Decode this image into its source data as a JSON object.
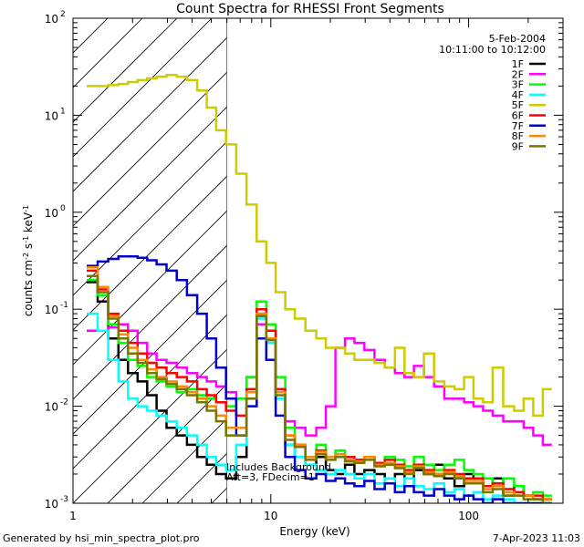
{
  "chart_data": {
    "type": "line",
    "title": "Count Spectra for RHESSI Front Segments",
    "xlabel": "Energy (keV)",
    "ylabel_parts": [
      "counts cm",
      "-2",
      " s",
      "-1",
      " keV",
      "-1"
    ],
    "xscale": "log",
    "yscale": "log",
    "xlim": [
      1,
      300
    ],
    "ylim": [
      0.001,
      100
    ],
    "x_ticks": [
      {
        "value": 1,
        "label": "1"
      },
      {
        "value": 10,
        "label": "10"
      },
      {
        "value": 100,
        "label": "100"
      }
    ],
    "y_ticks": [
      {
        "value": 0.001,
        "base": "10",
        "exp": "-3"
      },
      {
        "value": 0.01,
        "base": "10",
        "exp": "-2"
      },
      {
        "value": 0.1,
        "base": "10",
        "exp": "-1"
      },
      {
        "value": 1,
        "base": "10",
        "exp": "0"
      },
      {
        "value": 10,
        "base": "10",
        "exp": "1"
      },
      {
        "value": 100,
        "base": "10",
        "exp": "2"
      }
    ],
    "date": "5-Feb-2004",
    "time_range": "10:11:00 to 10:12:00",
    "shaded_region": {
      "x_min": 1,
      "x_max": 6,
      "pattern": "diagonal hatch"
    },
    "annotations": [
      "Includes Background",
      "Att=3, FDecim=1"
    ],
    "footer_left": "Generated by hsi_min_spectra_plot.pro",
    "footer_right": "7-Apr-2023 11:03",
    "series": [
      {
        "name": "1F",
        "color": "#000000",
        "x": [
          1.25,
          1.42,
          1.6,
          1.8,
          2.0,
          2.25,
          2.5,
          2.8,
          3.15,
          3.55,
          4.0,
          4.5,
          5.0,
          5.6,
          6.3,
          7.1,
          8.0,
          9.0,
          10.0,
          11.2,
          12.5,
          14.0,
          16.0,
          18.0,
          20.0,
          22.5,
          25.0,
          28.0,
          31.5,
          35.5,
          40.0,
          45.0,
          50.0,
          56.0,
          63.0,
          71.0,
          80.0,
          90.0,
          100.0,
          112.0,
          125.0,
          140.0,
          160.0,
          180.0,
          200.0,
          225.0,
          250.0
        ],
        "y": [
          0.19,
          0.12,
          0.05,
          0.03,
          0.022,
          0.018,
          0.013,
          0.009,
          0.006,
          0.005,
          0.004,
          0.003,
          0.0025,
          0.002,
          0.0018,
          0.003,
          0.012,
          0.09,
          0.05,
          0.012,
          0.004,
          0.003,
          0.0025,
          0.003,
          0.0022,
          0.002,
          0.0025,
          0.002,
          0.0022,
          0.002,
          0.0018,
          0.002,
          0.0015,
          0.0022,
          0.002,
          0.0025,
          0.0018,
          0.0015,
          0.002,
          0.0018,
          0.0015,
          0.0018,
          0.0012,
          0.0015,
          0.0012,
          0.0011,
          0.0011
        ]
      },
      {
        "name": "2F",
        "color": "#ff00ff",
        "x": [
          1.25,
          1.42,
          1.6,
          1.8,
          2.0,
          2.25,
          2.5,
          2.8,
          3.15,
          3.55,
          4.0,
          4.5,
          5.0,
          5.6,
          6.3,
          7.1,
          8.0,
          9.0,
          10.0,
          11.2,
          12.5,
          14.0,
          16.0,
          18.0,
          20.0,
          22.5,
          25.0,
          28.0,
          31.5,
          35.5,
          40.0,
          45.0,
          50.0,
          56.0,
          63.0,
          71.0,
          80.0,
          90.0,
          100.0,
          112.0,
          125.0,
          140.0,
          160.0,
          180.0,
          200.0,
          225.0,
          250.0
        ],
        "y": [
          0.06,
          0.06,
          0.065,
          0.07,
          0.06,
          0.045,
          0.035,
          0.03,
          0.028,
          0.025,
          0.022,
          0.02,
          0.018,
          0.016,
          0.014,
          0.012,
          0.02,
          0.07,
          0.05,
          0.015,
          0.007,
          0.006,
          0.005,
          0.006,
          0.01,
          0.04,
          0.05,
          0.045,
          0.038,
          0.03,
          0.025,
          0.022,
          0.02,
          0.026,
          0.02,
          0.016,
          0.012,
          0.012,
          0.011,
          0.01,
          0.009,
          0.008,
          0.007,
          0.007,
          0.006,
          0.005,
          0.004
        ]
      },
      {
        "name": "3F",
        "color": "#00ff00",
        "x": [
          1.25,
          1.42,
          1.6,
          1.8,
          2.0,
          2.25,
          2.5,
          2.8,
          3.15,
          3.55,
          4.0,
          4.5,
          5.0,
          5.6,
          6.3,
          7.1,
          8.0,
          9.0,
          10.0,
          11.2,
          12.5,
          14.0,
          16.0,
          18.0,
          20.0,
          22.5,
          25.0,
          28.0,
          31.5,
          35.5,
          40.0,
          45.0,
          50.0,
          56.0,
          63.0,
          71.0,
          80.0,
          90.0,
          100.0,
          112.0,
          125.0,
          140.0,
          160.0,
          180.0,
          200.0,
          225.0,
          250.0
        ],
        "y": [
          0.2,
          0.14,
          0.07,
          0.045,
          0.03,
          0.026,
          0.02,
          0.018,
          0.016,
          0.014,
          0.015,
          0.013,
          0.012,
          0.011,
          0.01,
          0.012,
          0.02,
          0.12,
          0.07,
          0.02,
          0.006,
          0.004,
          0.003,
          0.004,
          0.003,
          0.0035,
          0.003,
          0.0028,
          0.003,
          0.0025,
          0.003,
          0.0028,
          0.0024,
          0.003,
          0.0025,
          0.0022,
          0.0025,
          0.0028,
          0.0022,
          0.002,
          0.0018,
          0.0015,
          0.0018,
          0.0015,
          0.0012,
          0.0013,
          0.0012
        ]
      },
      {
        "name": "4F",
        "color": "#00ffff",
        "x": [
          1.25,
          1.42,
          1.6,
          1.8,
          2.0,
          2.25,
          2.5,
          2.8,
          3.15,
          3.55,
          4.0,
          4.5,
          5.0,
          5.6,
          6.3,
          7.1,
          8.0,
          9.0,
          10.0,
          11.2,
          12.5,
          14.0,
          16.0,
          18.0,
          20.0,
          22.5,
          25.0,
          28.0,
          31.5,
          35.5,
          40.0,
          45.0,
          50.0,
          56.0,
          63.0,
          71.0,
          80.0,
          90.0,
          100.0,
          112.0,
          125.0,
          140.0,
          160.0,
          180.0,
          200.0,
          225.0,
          250.0
        ],
        "y": [
          0.09,
          0.06,
          0.03,
          0.018,
          0.012,
          0.01,
          0.009,
          0.008,
          0.007,
          0.006,
          0.005,
          0.004,
          0.003,
          0.0025,
          0.0022,
          0.004,
          0.015,
          0.08,
          0.045,
          0.012,
          0.004,
          0.003,
          0.0025,
          0.0022,
          0.002,
          0.0022,
          0.002,
          0.0018,
          0.002,
          0.0016,
          0.0018,
          0.0015,
          0.0018,
          0.0015,
          0.0014,
          0.0016,
          0.0013,
          0.0014,
          0.0012,
          0.0013,
          0.0011,
          0.0012,
          0.0011,
          0.001,
          0.001,
          0.001,
          0.001
        ]
      },
      {
        "name": "5F",
        "color": "#cccc00",
        "x": [
          1.25,
          1.42,
          1.6,
          1.8,
          2.0,
          2.25,
          2.5,
          2.8,
          3.15,
          3.55,
          4.0,
          4.5,
          5.0,
          5.6,
          6.3,
          7.1,
          8.0,
          9.0,
          10.0,
          11.2,
          12.5,
          14.0,
          16.0,
          18.0,
          20.0,
          22.5,
          25.0,
          28.0,
          31.5,
          35.5,
          40.0,
          45.0,
          50.0,
          56.0,
          63.0,
          71.0,
          80.0,
          90.0,
          100.0,
          112.0,
          125.0,
          140.0,
          160.0,
          180.0,
          200.0,
          225.0,
          250.0
        ],
        "y": [
          20,
          20,
          20.5,
          21,
          22,
          23,
          24,
          25,
          26,
          25,
          23,
          18,
          12,
          7,
          5,
          2.5,
          1.2,
          0.5,
          0.3,
          0.15,
          0.1,
          0.08,
          0.06,
          0.05,
          0.04,
          0.04,
          0.035,
          0.03,
          0.03,
          0.028,
          0.025,
          0.04,
          0.022,
          0.02,
          0.035,
          0.018,
          0.016,
          0.015,
          0.02,
          0.012,
          0.011,
          0.025,
          0.01,
          0.009,
          0.012,
          0.008,
          0.015
        ]
      },
      {
        "name": "6F",
        "color": "#ff0000",
        "x": [
          1.25,
          1.42,
          1.6,
          1.8,
          2.0,
          2.25,
          2.5,
          2.8,
          3.15,
          3.55,
          4.0,
          4.5,
          5.0,
          5.6,
          6.3,
          7.1,
          8.0,
          9.0,
          10.0,
          11.2,
          12.5,
          14.0,
          16.0,
          18.0,
          20.0,
          22.5,
          25.0,
          28.0,
          31.5,
          35.5,
          40.0,
          45.0,
          50.0,
          56.0,
          63.0,
          71.0,
          80.0,
          90.0,
          100.0,
          112.0,
          125.0,
          140.0,
          160.0,
          180.0,
          200.0,
          225.0,
          250.0
        ],
        "y": [
          0.25,
          0.16,
          0.09,
          0.06,
          0.045,
          0.035,
          0.028,
          0.025,
          0.022,
          0.02,
          0.018,
          0.015,
          0.013,
          0.011,
          0.009,
          0.008,
          0.015,
          0.1,
          0.06,
          0.015,
          0.005,
          0.004,
          0.003,
          0.0035,
          0.003,
          0.0032,
          0.003,
          0.0028,
          0.003,
          0.0026,
          0.0028,
          0.0025,
          0.0022,
          0.0025,
          0.0022,
          0.002,
          0.0022,
          0.002,
          0.0018,
          0.0018,
          0.0015,
          0.0016,
          0.0014,
          0.0013,
          0.0012,
          0.0012,
          0.0011
        ]
      },
      {
        "name": "7F",
        "color": "#0000cc",
        "x": [
          1.25,
          1.42,
          1.6,
          1.8,
          2.0,
          2.25,
          2.5,
          2.8,
          3.15,
          3.55,
          4.0,
          4.5,
          5.0,
          5.6,
          6.3,
          7.1,
          8.0,
          9.0,
          10.0,
          11.2,
          12.5,
          14.0,
          16.0,
          18.0,
          20.0,
          22.5,
          25.0,
          28.0,
          31.5,
          35.5,
          40.0,
          45.0,
          50.0,
          56.0,
          63.0,
          71.0,
          80.0,
          90.0,
          100.0,
          112.0,
          125.0,
          140.0,
          160.0,
          180.0,
          200.0,
          225.0,
          250.0
        ],
        "y": [
          0.28,
          0.31,
          0.33,
          0.35,
          0.35,
          0.34,
          0.32,
          0.29,
          0.25,
          0.2,
          0.14,
          0.09,
          0.05,
          0.025,
          0.012,
          0.005,
          0.01,
          0.05,
          0.03,
          0.008,
          0.003,
          0.0022,
          0.0018,
          0.002,
          0.0017,
          0.0018,
          0.0016,
          0.0015,
          0.0017,
          0.0014,
          0.0016,
          0.0013,
          0.0015,
          0.0013,
          0.0012,
          0.0014,
          0.0012,
          0.0011,
          0.0012,
          0.0011,
          0.001,
          0.0011,
          0.001,
          0.001,
          0.001,
          0.001,
          0.001
        ]
      },
      {
        "name": "8F",
        "color": "#ff8800",
        "x": [
          1.25,
          1.42,
          1.6,
          1.8,
          2.0,
          2.25,
          2.5,
          2.8,
          3.15,
          3.55,
          4.0,
          4.5,
          5.0,
          5.6,
          6.3,
          7.1,
          8.0,
          9.0,
          10.0,
          11.2,
          12.5,
          14.0,
          16.0,
          18.0,
          20.0,
          22.5,
          25.0,
          28.0,
          31.5,
          35.5,
          40.0,
          45.0,
          50.0,
          56.0,
          63.0,
          71.0,
          80.0,
          90.0,
          100.0,
          112.0,
          125.0,
          140.0,
          160.0,
          180.0,
          200.0,
          225.0,
          250.0
        ],
        "y": [
          0.27,
          0.17,
          0.085,
          0.055,
          0.04,
          0.03,
          0.024,
          0.02,
          0.018,
          0.016,
          0.014,
          0.012,
          0.01,
          0.008,
          0.006,
          0.006,
          0.014,
          0.09,
          0.05,
          0.014,
          0.005,
          0.004,
          0.003,
          0.0034,
          0.003,
          0.0032,
          0.0028,
          0.0027,
          0.003,
          0.0025,
          0.0026,
          0.0024,
          0.0021,
          0.0024,
          0.0021,
          0.002,
          0.0021,
          0.0019,
          0.0017,
          0.0017,
          0.0014,
          0.0015,
          0.0013,
          0.0012,
          0.0012,
          0.0011,
          0.0011
        ]
      },
      {
        "name": "9F",
        "color": "#777700",
        "x": [
          1.25,
          1.42,
          1.6,
          1.8,
          2.0,
          2.25,
          2.5,
          2.8,
          3.15,
          3.55,
          4.0,
          4.5,
          5.0,
          5.6,
          6.3,
          7.1,
          8.0,
          9.0,
          10.0,
          11.2,
          12.5,
          14.0,
          16.0,
          18.0,
          20.0,
          22.5,
          25.0,
          28.0,
          31.5,
          35.5,
          40.0,
          45.0,
          50.0,
          56.0,
          63.0,
          71.0,
          80.0,
          90.0,
          100.0,
          112.0,
          125.0,
          140.0,
          160.0,
          180.0,
          200.0,
          225.0,
          250.0
        ],
        "y": [
          0.22,
          0.15,
          0.08,
          0.05,
          0.035,
          0.028,
          0.022,
          0.019,
          0.017,
          0.015,
          0.013,
          0.011,
          0.009,
          0.007,
          0.005,
          0.005,
          0.012,
          0.085,
          0.048,
          0.013,
          0.0045,
          0.0038,
          0.0028,
          0.0032,
          0.0028,
          0.003,
          0.0027,
          0.0026,
          0.0028,
          0.0024,
          0.0025,
          0.0023,
          0.002,
          0.0023,
          0.002,
          0.0019,
          0.002,
          0.0018,
          0.0016,
          0.0016,
          0.0013,
          0.0014,
          0.0012,
          0.0012,
          0.0011,
          0.0011,
          0.001
        ]
      }
    ]
  }
}
